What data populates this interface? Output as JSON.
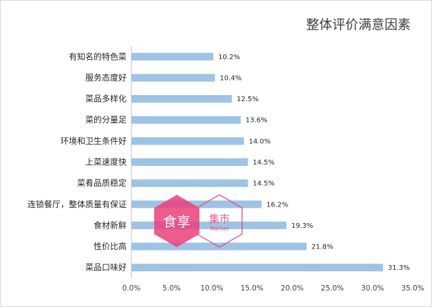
{
  "chart_data": {
    "type": "bar",
    "orientation": "horizontal",
    "title": "整体评价满意因素",
    "categories": [
      "有知名的特色菜",
      "服务态度好",
      "菜品多样化",
      "菜的分量足",
      "环境和卫生条件好",
      "上菜速度快",
      "菜肴品质稳定",
      "连锁餐厅，整体质量有保证",
      "食材新鲜",
      "性价比高",
      "菜品口味好"
    ],
    "values": [
      10.2,
      10.4,
      12.5,
      13.6,
      14.0,
      14.5,
      14.5,
      16.2,
      19.3,
      21.8,
      31.3
    ],
    "value_labels": [
      "10.2%",
      "10.4%",
      "12.5%",
      "13.6%",
      "14.0%",
      "14.5%",
      "14.5%",
      "16.2%",
      "19.3%",
      "21.8%",
      "31.3%"
    ],
    "xlim": [
      0,
      35
    ],
    "xticks": [
      "0.0%",
      "5.0%",
      "10.0%",
      "15.0%",
      "20.0%",
      "25.0%",
      "30.0%",
      "35.0%"
    ],
    "grid": false,
    "bar_color": "#9dc3e6",
    "axis_color": "#bfbfbf"
  },
  "watermark": {
    "text_left": "食享",
    "text_right": "集市",
    "text_right_sub": "Market",
    "color_primary": "#ec407a"
  }
}
